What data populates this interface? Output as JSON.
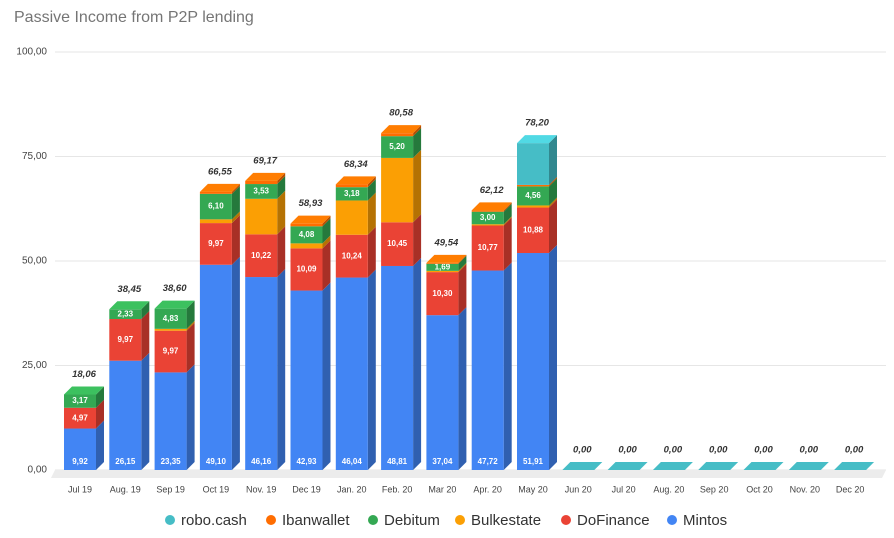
{
  "chart_data": {
    "type": "bar",
    "stacked": true,
    "title": "Passive Income from P2P lending",
    "categories": [
      "Jul 19",
      "Aug. 19",
      "Sep 19",
      "Oct 19",
      "Nov. 19",
      "Dec 19",
      "Jan. 20",
      "Feb. 20",
      "Mar 20",
      "Apr. 20",
      "May 20",
      "Jun 20",
      "Jul 20",
      "Aug. 20",
      "Sep 20",
      "Oct 20",
      "Nov. 20",
      "Dec 20"
    ],
    "series": [
      {
        "name": "Mintos",
        "color": "#4285f4",
        "values": [
          9.92,
          26.15,
          23.35,
          49.1,
          46.16,
          42.93,
          46.04,
          48.81,
          37.04,
          47.72,
          51.91,
          0,
          0,
          0,
          0,
          0,
          0,
          0
        ],
        "value_labels": [
          "9,92",
          "26,15",
          "23,35",
          "49,10",
          "46,16",
          "42,93",
          "46,04",
          "48,81",
          "37,04",
          "47,72",
          "51,91",
          null,
          null,
          null,
          null,
          null,
          null,
          null
        ]
      },
      {
        "name": "DoFinance",
        "color": "#ea4335",
        "values": [
          4.97,
          9.97,
          9.97,
          9.97,
          10.22,
          10.09,
          10.24,
          10.45,
          10.3,
          10.77,
          10.88,
          0,
          0,
          0,
          0,
          0,
          0,
          0
        ],
        "value_labels": [
          "4,97",
          "9,97",
          "9,97",
          "9,97",
          "10,22",
          "10,09",
          "10,24",
          "10,45",
          "10,30",
          "10,77",
          "10,88",
          null,
          null,
          null,
          null,
          null,
          null,
          null
        ]
      },
      {
        "name": "Bulkestate",
        "color": "#fb9f04",
        "values": [
          0,
          0,
          0.45,
          0.9,
          8.5,
          1.2,
          8.2,
          15.4,
          0.3,
          0.3,
          0.5,
          0,
          0,
          0,
          0,
          0,
          0,
          0
        ]
      },
      {
        "name": "Debitum",
        "color": "#34a853",
        "values": [
          3.17,
          2.33,
          4.83,
          6.1,
          3.53,
          4.08,
          3.18,
          5.2,
          1.69,
          3.0,
          4.56,
          0,
          0,
          0,
          0,
          0,
          0,
          0
        ],
        "value_labels": [
          "3,17",
          "2,33",
          "4,83",
          "6,10",
          "3,53",
          "4,08",
          "3,18",
          "5,20",
          "1,69",
          "3,00",
          "4,56",
          null,
          null,
          null,
          null,
          null,
          null,
          null
        ]
      },
      {
        "name": "Ibanwallet",
        "color": "#ff6d01",
        "values": [
          0,
          0,
          0,
          0.48,
          0.76,
          0.63,
          0.68,
          0.72,
          0.21,
          0.33,
          0.35,
          0,
          0,
          0,
          0,
          0,
          0,
          0
        ]
      },
      {
        "name": "robo.cash",
        "color": "#46bdc6",
        "values": [
          0,
          0,
          0,
          0,
          0,
          0,
          0,
          0,
          0,
          0,
          10.0,
          0,
          0,
          0,
          0,
          0,
          0,
          0
        ]
      }
    ],
    "totals": [
      18.06,
      38.45,
      38.6,
      66.55,
      69.17,
      58.93,
      68.34,
      80.58,
      49.54,
      62.12,
      78.2,
      0,
      0,
      0,
      0,
      0,
      0,
      0
    ],
    "total_labels": [
      "18,06",
      "38,45",
      "38,60",
      "66,55",
      "69,17",
      "58,93",
      "68,34",
      "80,58",
      "49,54",
      "62,12",
      "78,20",
      "0,00",
      "0,00",
      "0,00",
      "0,00",
      "0,00",
      "0,00",
      "0,00"
    ],
    "ylim": [
      0,
      100
    ],
    "yticks": [
      {
        "value": 0,
        "label": "0,00"
      },
      {
        "value": 25,
        "label": "25,00"
      },
      {
        "value": 50,
        "label": "50,00"
      },
      {
        "value": 75,
        "label": "75,00"
      },
      {
        "value": 100,
        "label": "100,00"
      }
    ],
    "grid": true,
    "legend": "bottom"
  }
}
